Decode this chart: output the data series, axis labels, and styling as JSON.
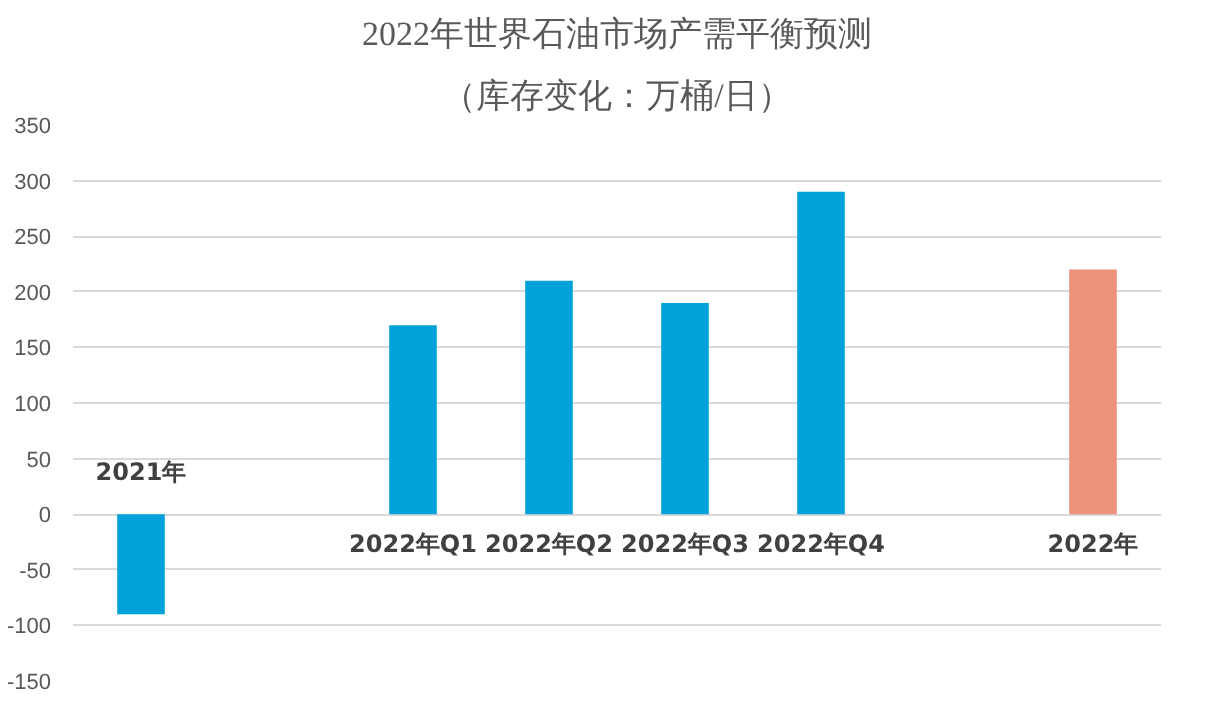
{
  "chart_data": {
    "type": "bar",
    "title": "2022年世界石油市场产需平衡预测",
    "subtitle": "（库存变化：万桶/日）",
    "categories": [
      "2021年",
      null,
      "2022年Q1",
      "2022年Q2",
      "2022年Q3",
      "2022年Q4",
      null,
      "2022年"
    ],
    "values": [
      -90,
      null,
      170,
      210,
      190,
      290,
      null,
      220
    ],
    "colors": [
      "#00a2d9",
      "#00a2d9",
      "#00a2d9",
      "#00a2d9",
      "#00a2d9",
      "#00a2d9",
      "#00a2d9",
      "#ec917a"
    ],
    "ylim": [
      -150,
      350
    ],
    "yticks": [
      -150,
      -100,
      -50,
      0,
      50,
      100,
      150,
      200,
      250,
      300,
      350
    ],
    "grid": "y"
  }
}
